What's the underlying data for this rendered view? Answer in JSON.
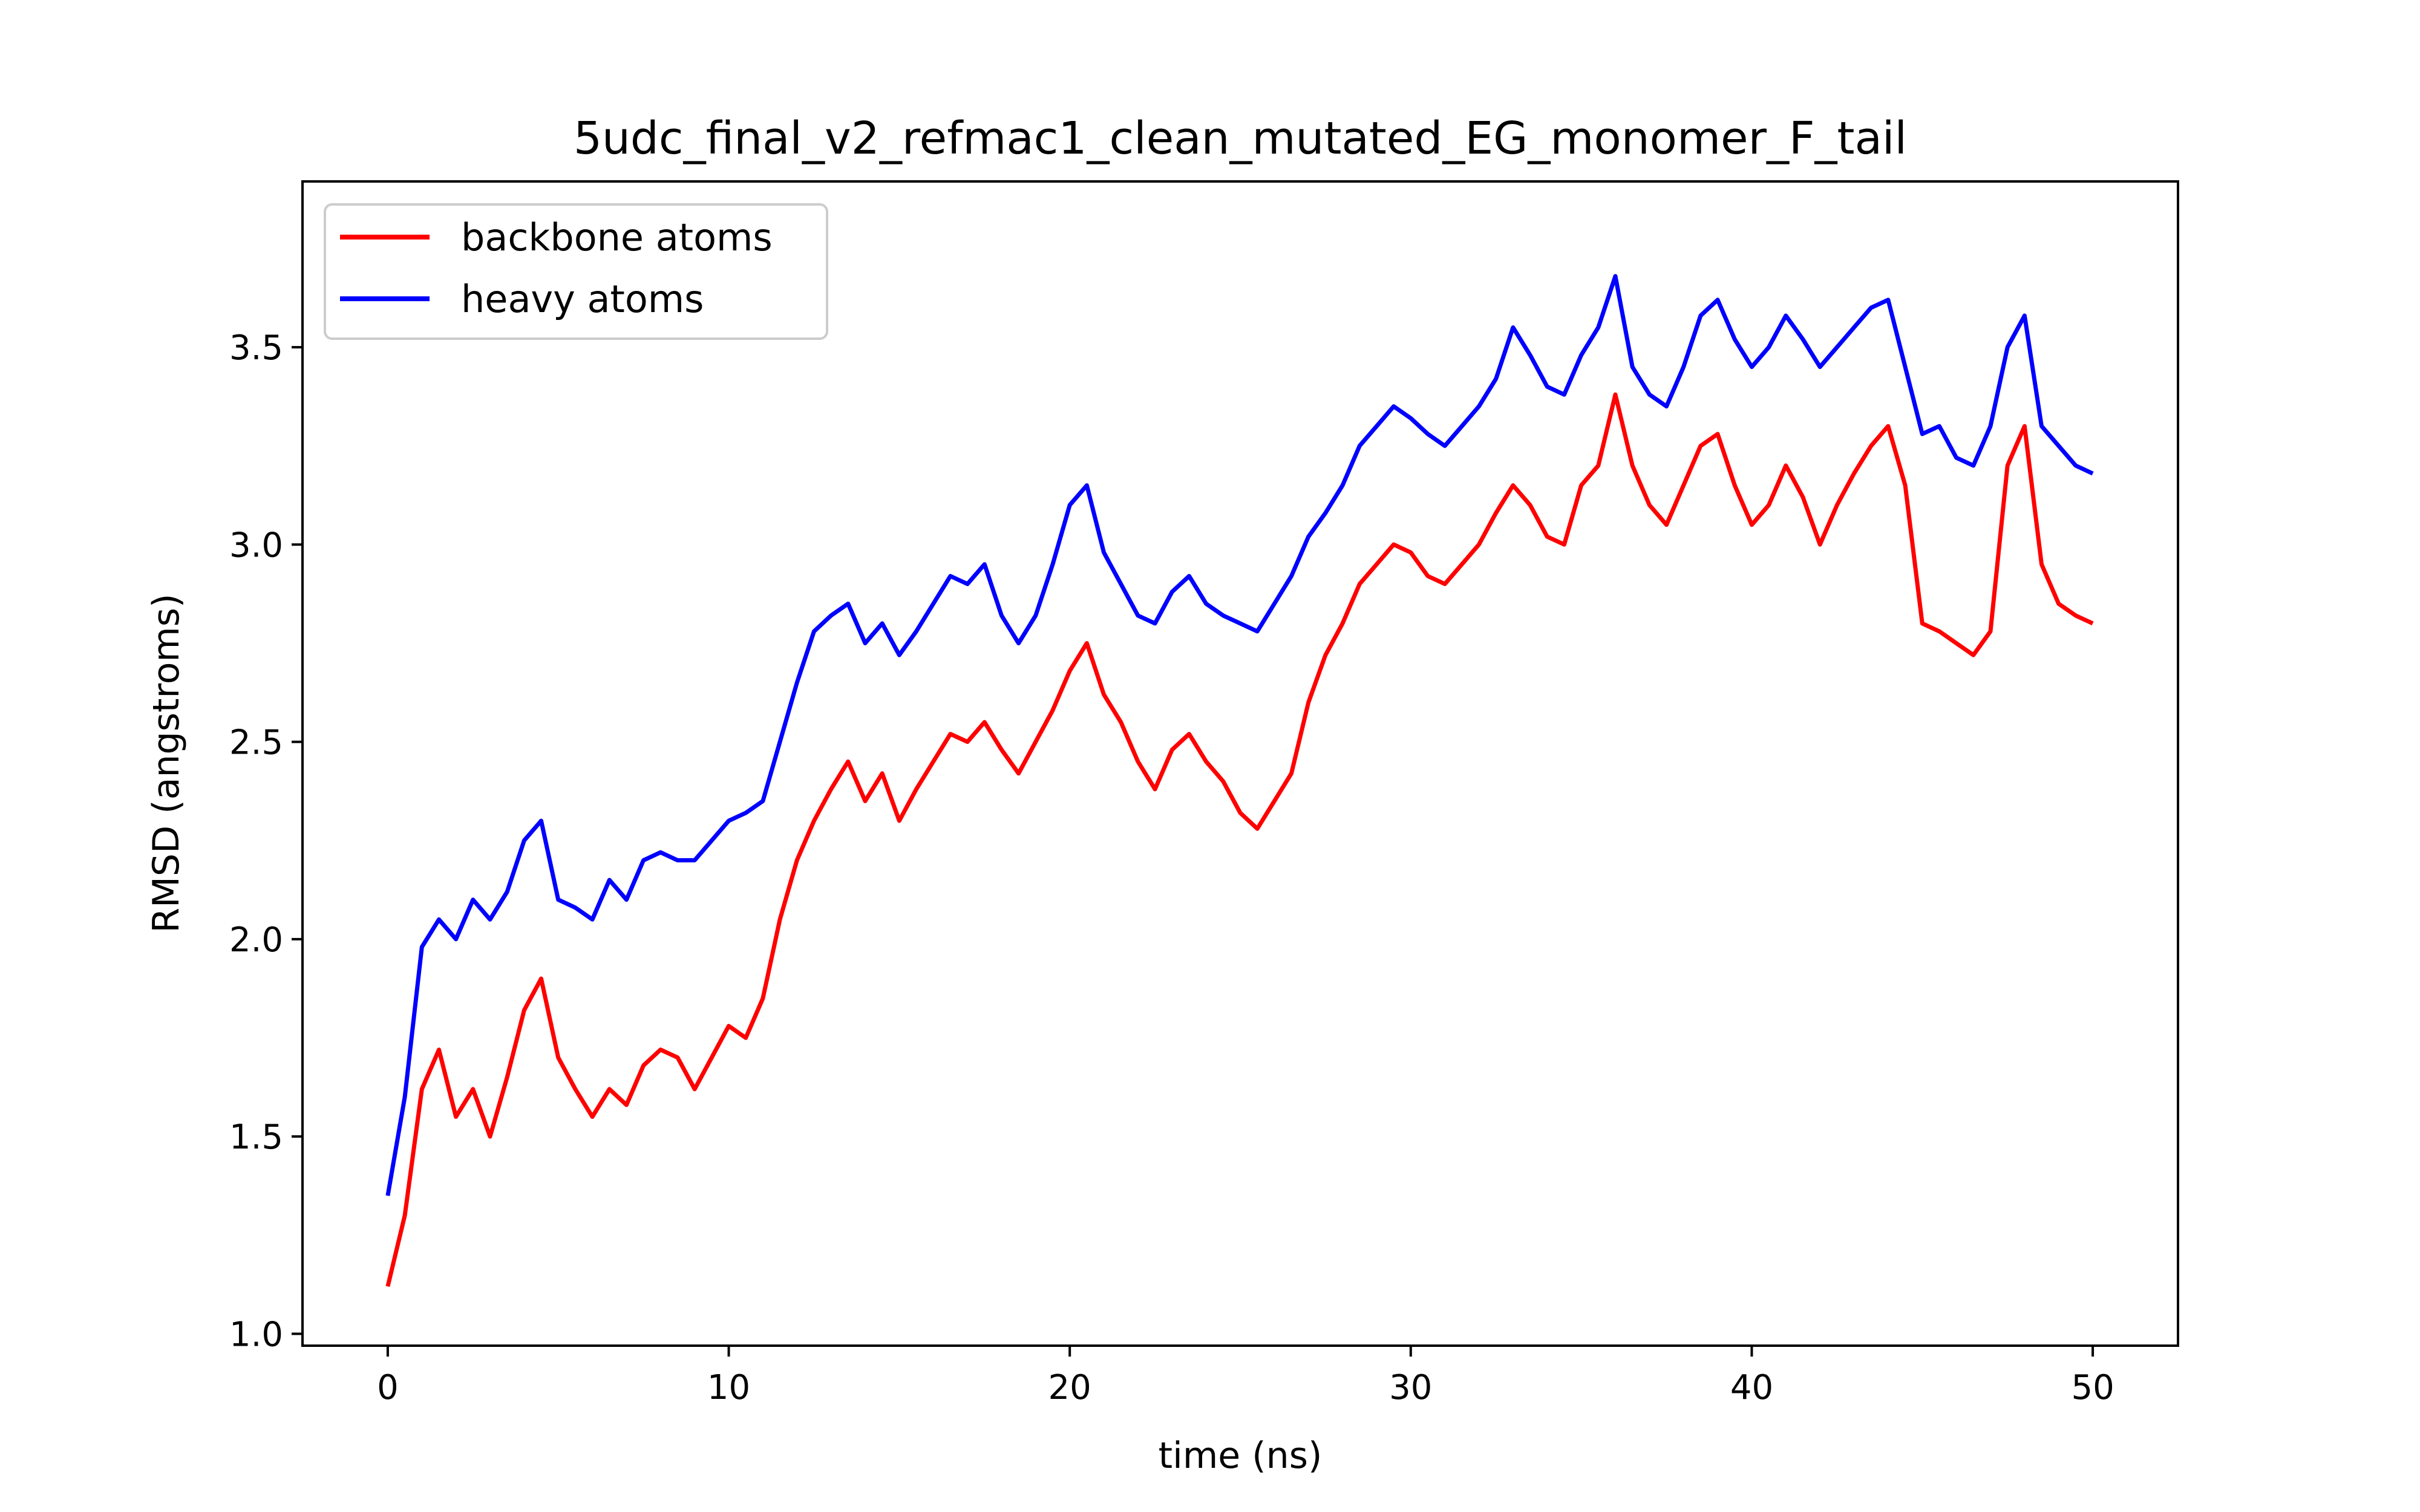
{
  "chart_data": {
    "type": "line",
    "title": "5udc_final_v2_refmac1_clean_mutated_EG_monomer_F_tail",
    "xlabel": "time (ns)",
    "ylabel": "RMSD (angstroms)",
    "xlim": [
      -2.5,
      52.5
    ],
    "ylim": [
      0.97,
      3.92
    ],
    "xticks": [
      0,
      10,
      20,
      30,
      40,
      50
    ],
    "xtick_labels": [
      "0",
      "10",
      "20",
      "30",
      "40",
      "50"
    ],
    "yticks": [
      1.0,
      1.5,
      2.0,
      2.5,
      3.0,
      3.5
    ],
    "ytick_labels": [
      "1.0",
      "1.5",
      "2.0",
      "2.5",
      "3.0",
      "3.5"
    ],
    "grid": false,
    "legend_position": "upper-left",
    "series": [
      {
        "name": "backbone atoms",
        "color": "#ff0000",
        "x": [
          0,
          0.5,
          1,
          1.5,
          2,
          2.5,
          3,
          3.5,
          4,
          4.5,
          5,
          5.5,
          6,
          6.5,
          7,
          7.5,
          8,
          8.5,
          9,
          9.5,
          10,
          10.5,
          11,
          11.5,
          12,
          12.5,
          13,
          13.5,
          14,
          14.5,
          15,
          15.5,
          16,
          16.5,
          17,
          17.5,
          18,
          18.5,
          19,
          19.5,
          20,
          20.5,
          21,
          21.5,
          22,
          22.5,
          23,
          23.5,
          24,
          24.5,
          25,
          25.5,
          26,
          26.5,
          27,
          27.5,
          28,
          28.5,
          29,
          29.5,
          30,
          30.5,
          31,
          31.5,
          32,
          32.5,
          33,
          33.5,
          34,
          34.5,
          35,
          35.5,
          36,
          36.5,
          37,
          37.5,
          38,
          38.5,
          39,
          39.5,
          40,
          40.5,
          41,
          41.5,
          42,
          42.5,
          43,
          43.5,
          44,
          44.5,
          45,
          45.5,
          46,
          46.5,
          47,
          47.5,
          48,
          48.5,
          49,
          49.5,
          50
        ],
        "y": [
          1.12,
          1.3,
          1.62,
          1.72,
          1.55,
          1.62,
          1.5,
          1.65,
          1.82,
          1.9,
          1.7,
          1.62,
          1.55,
          1.62,
          1.58,
          1.68,
          1.72,
          1.7,
          1.62,
          1.7,
          1.78,
          1.75,
          1.85,
          2.05,
          2.2,
          2.3,
          2.38,
          2.45,
          2.35,
          2.42,
          2.3,
          2.38,
          2.45,
          2.52,
          2.5,
          2.55,
          2.48,
          2.42,
          2.5,
          2.58,
          2.68,
          2.75,
          2.62,
          2.55,
          2.45,
          2.38,
          2.48,
          2.52,
          2.45,
          2.4,
          2.32,
          2.28,
          2.35,
          2.42,
          2.6,
          2.72,
          2.8,
          2.9,
          2.95,
          3.0,
          2.98,
          2.92,
          2.9,
          2.95,
          3.0,
          3.08,
          3.15,
          3.1,
          3.02,
          3.0,
          3.15,
          3.2,
          3.38,
          3.2,
          3.1,
          3.05,
          3.15,
          3.25,
          3.28,
          3.15,
          3.05,
          3.1,
          3.2,
          3.12,
          3.0,
          3.1,
          3.18,
          3.25,
          3.3,
          3.15,
          2.8,
          2.78,
          2.75,
          2.72,
          2.78,
          3.2,
          3.3,
          2.95,
          2.85,
          2.82,
          2.8
        ]
      },
      {
        "name": "heavy atoms",
        "color": "#0000ff",
        "x": [
          0,
          0.5,
          1,
          1.5,
          2,
          2.5,
          3,
          3.5,
          4,
          4.5,
          5,
          5.5,
          6,
          6.5,
          7,
          7.5,
          8,
          8.5,
          9,
          9.5,
          10,
          10.5,
          11,
          11.5,
          12,
          12.5,
          13,
          13.5,
          14,
          14.5,
          15,
          15.5,
          16,
          16.5,
          17,
          17.5,
          18,
          18.5,
          19,
          19.5,
          20,
          20.5,
          21,
          21.5,
          22,
          22.5,
          23,
          23.5,
          24,
          24.5,
          25,
          25.5,
          26,
          26.5,
          27,
          27.5,
          28,
          28.5,
          29,
          29.5,
          30,
          30.5,
          31,
          31.5,
          32,
          32.5,
          33,
          33.5,
          34,
          34.5,
          35,
          35.5,
          36,
          36.5,
          37,
          37.5,
          38,
          38.5,
          39,
          39.5,
          40,
          40.5,
          41,
          41.5,
          42,
          42.5,
          43,
          43.5,
          44,
          44.5,
          45,
          45.5,
          46,
          46.5,
          47,
          47.5,
          48,
          48.5,
          49,
          49.5,
          50
        ],
        "y": [
          1.35,
          1.6,
          1.98,
          2.05,
          2.0,
          2.1,
          2.05,
          2.12,
          2.25,
          2.3,
          2.1,
          2.08,
          2.05,
          2.15,
          2.1,
          2.2,
          2.22,
          2.2,
          2.2,
          2.25,
          2.3,
          2.32,
          2.35,
          2.5,
          2.65,
          2.78,
          2.82,
          2.85,
          2.75,
          2.8,
          2.72,
          2.78,
          2.85,
          2.92,
          2.9,
          2.95,
          2.82,
          2.75,
          2.82,
          2.95,
          3.1,
          3.15,
          2.98,
          2.9,
          2.82,
          2.8,
          2.88,
          2.92,
          2.85,
          2.82,
          2.8,
          2.78,
          2.85,
          2.92,
          3.02,
          3.08,
          3.15,
          3.25,
          3.3,
          3.35,
          3.32,
          3.28,
          3.25,
          3.3,
          3.35,
          3.42,
          3.55,
          3.48,
          3.4,
          3.38,
          3.48,
          3.55,
          3.68,
          3.45,
          3.38,
          3.35,
          3.45,
          3.58,
          3.62,
          3.52,
          3.45,
          3.5,
          3.58,
          3.52,
          3.45,
          3.5,
          3.55,
          3.6,
          3.62,
          3.45,
          3.28,
          3.3,
          3.22,
          3.2,
          3.3,
          3.5,
          3.58,
          3.3,
          3.25,
          3.2,
          3.18
        ]
      }
    ]
  }
}
